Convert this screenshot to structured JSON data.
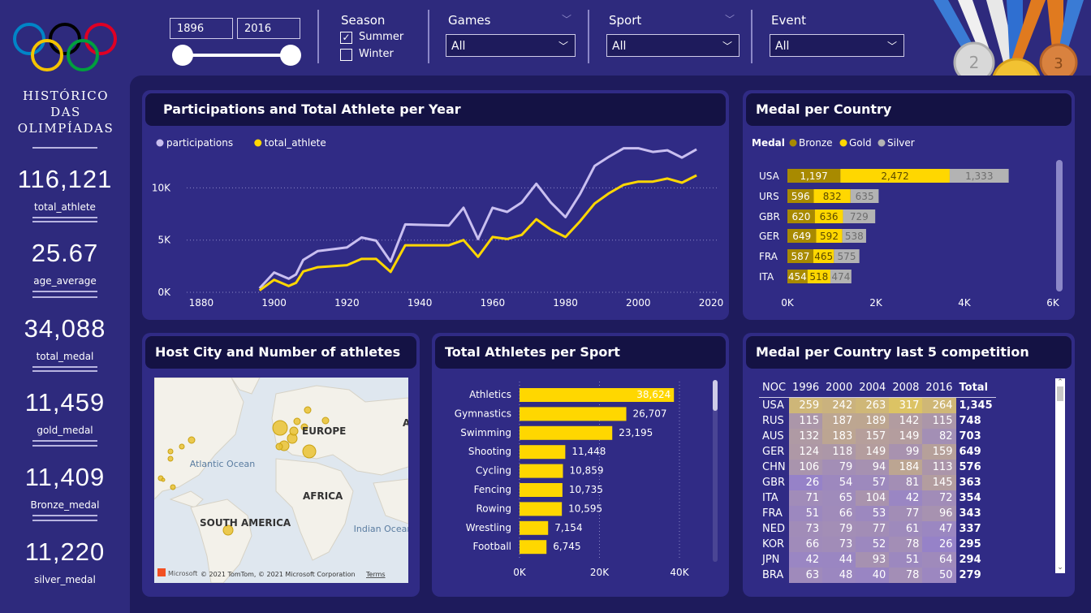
{
  "app": {
    "title": "HISTÓRICO DAS OLIMPÍADAS"
  },
  "kpis": [
    {
      "value": "116,121",
      "label": "total_athlete"
    },
    {
      "value": "25.67",
      "label": "age_average"
    },
    {
      "value": "34,088",
      "label": "total_medal"
    },
    {
      "value": "11,459",
      "label": "gold_medal"
    },
    {
      "value": "11,409",
      "label": "Bronze_medal"
    },
    {
      "value": "11,220",
      "label": "silver_medal"
    }
  ],
  "filters": {
    "year_from": "1896",
    "year_to": "2016",
    "season": {
      "label": "Season",
      "options": [
        {
          "label": "Summer",
          "checked": true
        },
        {
          "label": "Winter",
          "checked": false
        }
      ]
    },
    "games": {
      "label": "Games",
      "value": "All"
    },
    "sport": {
      "label": "Sport",
      "value": "All"
    },
    "event": {
      "label": "Event",
      "value": "All"
    }
  },
  "panels": {
    "line_title": "Participations and Total Athlete per Year",
    "medal_country_title": "Medal per Country",
    "map_title": "Host City and Number of athletes",
    "sport_title": "Total Athletes per Sport",
    "last5_title": "Medal per Country last 5 competition"
  },
  "map": {
    "labels": {
      "europe": "EUROPE",
      "atlantic": "Atlantic Ocean",
      "africa": "AFRICA",
      "south_america": "SOUTH AMERICA",
      "indian": "Indian Ocean",
      "asia_cut": "A"
    },
    "attribution": "© 2021 TomTom, © 2021 Microsoft Corporation",
    "terms": "Terms",
    "brand": "Microsoft"
  },
  "colors": {
    "participations": "#c9bff0",
    "total_athlete": "#ffd700",
    "bronze": "#a88a00",
    "gold": "#ffd700",
    "silver": "#b3b3b3",
    "panel": "#302b85",
    "title_bg": "#141244"
  },
  "chart_data": [
    {
      "type": "line",
      "legend": [
        "participations",
        "total_athlete"
      ],
      "x_ticks": [
        1880,
        1900,
        1920,
        1940,
        1960,
        1980,
        2000,
        2020
      ],
      "y_ticks": [
        {
          "v": 0,
          "label": "0K"
        },
        {
          "v": 5000,
          "label": "5K"
        },
        {
          "v": 10000,
          "label": "10K"
        }
      ],
      "xlim": [
        1876,
        2022
      ],
      "ylim": [
        0,
        14000
      ],
      "series": [
        {
          "name": "participations",
          "color": "#c9bff0",
          "points": [
            [
              1896,
              380
            ],
            [
              1900,
              1900
            ],
            [
              1904,
              1300
            ],
            [
              1906,
              1700
            ],
            [
              1908,
              3100
            ],
            [
              1912,
              3950
            ],
            [
              1920,
              4300
            ],
            [
              1924,
              5250
            ],
            [
              1928,
              4950
            ],
            [
              1932,
              2950
            ],
            [
              1936,
              6500
            ],
            [
              1948,
              6400
            ],
            [
              1952,
              8100
            ],
            [
              1956,
              5100
            ],
            [
              1960,
              8100
            ],
            [
              1964,
              7700
            ],
            [
              1968,
              8600
            ],
            [
              1972,
              10400
            ],
            [
              1976,
              8600
            ],
            [
              1980,
              7200
            ],
            [
              1984,
              9400
            ],
            [
              1988,
              12100
            ],
            [
              1992,
              13000
            ],
            [
              1996,
              13800
            ],
            [
              2000,
              13800
            ],
            [
              2004,
              13450
            ],
            [
              2008,
              13600
            ],
            [
              2012,
              12900
            ],
            [
              2016,
              13700
            ]
          ]
        },
        {
          "name": "total_athlete",
          "color": "#ffd700",
          "points": [
            [
              1896,
              180
            ],
            [
              1900,
              1200
            ],
            [
              1904,
              600
            ],
            [
              1906,
              900
            ],
            [
              1908,
              2000
            ],
            [
              1912,
              2400
            ],
            [
              1920,
              2600
            ],
            [
              1924,
              3200
            ],
            [
              1928,
              3200
            ],
            [
              1932,
              1950
            ],
            [
              1936,
              4500
            ],
            [
              1948,
              4500
            ],
            [
              1952,
              5000
            ],
            [
              1956,
              3400
            ],
            [
              1960,
              5300
            ],
            [
              1964,
              5100
            ],
            [
              1968,
              5500
            ],
            [
              1972,
              7000
            ],
            [
              1976,
              6000
            ],
            [
              1980,
              5300
            ],
            [
              1984,
              6800
            ],
            [
              1988,
              8500
            ],
            [
              1992,
              9500
            ],
            [
              1996,
              10300
            ],
            [
              2000,
              10600
            ],
            [
              2004,
              10600
            ],
            [
              2008,
              10900
            ],
            [
              2012,
              10500
            ],
            [
              2016,
              11200
            ]
          ]
        }
      ]
    },
    {
      "type": "bar",
      "stacked": true,
      "orientation": "horizontal",
      "legend_title": "Medal",
      "categories": [
        "USA",
        "URS",
        "GBR",
        "GER",
        "FRA",
        "ITA"
      ],
      "series": [
        {
          "name": "Bronze",
          "color": "#a88a00",
          "values": [
            1197,
            596,
            620,
            649,
            587,
            454
          ]
        },
        {
          "name": "Gold",
          "color": "#ffd700",
          "values": [
            2472,
            832,
            636,
            592,
            465,
            518
          ]
        },
        {
          "name": "Silver",
          "color": "#b3b3b3",
          "values": [
            1333,
            635,
            729,
            538,
            575,
            474
          ]
        }
      ],
      "x_ticks": [
        {
          "v": 0,
          "label": "0K"
        },
        {
          "v": 2000,
          "label": "2K"
        },
        {
          "v": 4000,
          "label": "4K"
        },
        {
          "v": 6000,
          "label": "6K"
        }
      ],
      "xlim": [
        0,
        6000
      ]
    },
    {
      "type": "bar",
      "orientation": "horizontal",
      "categories": [
        "Athletics",
        "Gymnastics",
        "Swimming",
        "Shooting",
        "Cycling",
        "Fencing",
        "Rowing",
        "Wrestling",
        "Football"
      ],
      "values": [
        38624,
        26707,
        23195,
        11448,
        10859,
        10735,
        10595,
        7154,
        6745
      ],
      "labels": [
        "38,624",
        "26,707",
        "23,195",
        "11,448",
        "10,859",
        "10,735",
        "10,595",
        "7,154",
        "6,745"
      ],
      "x_ticks": [
        {
          "v": 0,
          "label": "0K"
        },
        {
          "v": 20000,
          "label": "20K"
        },
        {
          "v": 40000,
          "label": "40K"
        }
      ],
      "xlim": [
        0,
        40000
      ]
    },
    {
      "type": "table",
      "columns": [
        "NOC",
        "1996",
        "2000",
        "2004",
        "2008",
        "2016",
        "Total"
      ],
      "rows": [
        [
          "USA",
          259,
          242,
          263,
          317,
          264,
          "1,345"
        ],
        [
          "RUS",
          115,
          187,
          189,
          142,
          115,
          "748"
        ],
        [
          "AUS",
          132,
          183,
          157,
          149,
          82,
          "703"
        ],
        [
          "GER",
          124,
          118,
          149,
          99,
          159,
          "649"
        ],
        [
          "CHN",
          106,
          79,
          94,
          184,
          113,
          "576"
        ],
        [
          "GBR",
          26,
          54,
          57,
          81,
          145,
          "363"
        ],
        [
          "ITA",
          71,
          65,
          104,
          42,
          72,
          "354"
        ],
        [
          "FRA",
          51,
          66,
          53,
          77,
          96,
          "343"
        ],
        [
          "NED",
          73,
          79,
          77,
          61,
          47,
          "337"
        ],
        [
          "KOR",
          66,
          73,
          52,
          78,
          26,
          "295"
        ],
        [
          "JPN",
          42,
          44,
          93,
          51,
          64,
          "294"
        ],
        [
          "BRA",
          63,
          48,
          40,
          78,
          50,
          "279"
        ]
      ]
    }
  ]
}
